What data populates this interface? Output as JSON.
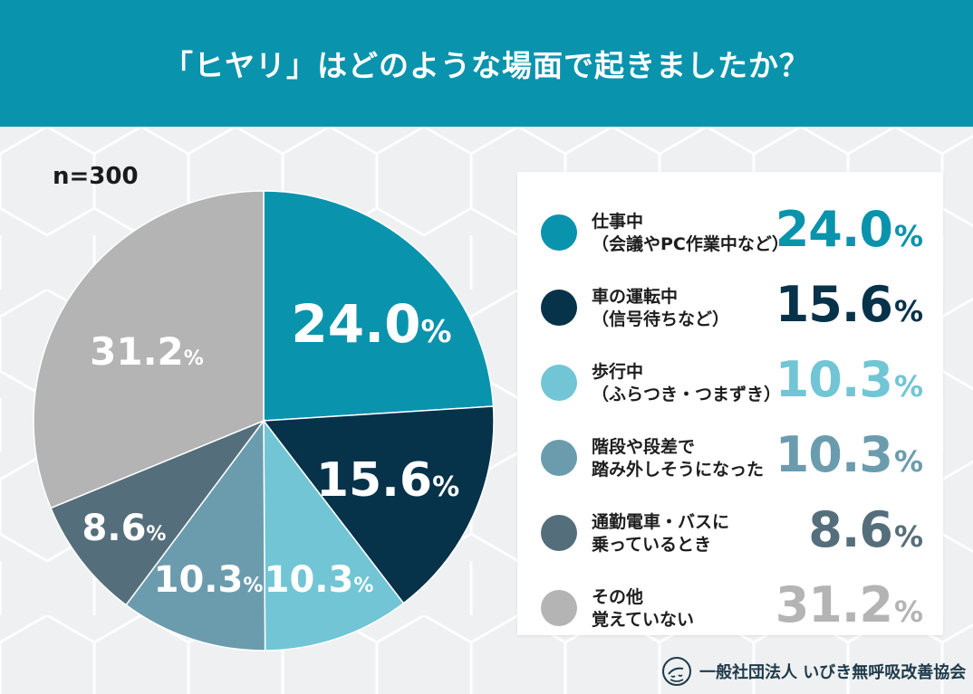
{
  "title": "「ヒヤリ」はどのような場面で起きましたか？",
  "n_label": "n=300",
  "pct_symbol": "%",
  "organization": "一般社団法人 いびき無呼吸改善協会",
  "logo_icon": "sleeping-face-logo-icon",
  "colors": {
    "header": "#0a93ad",
    "background": "#f1f2f3"
  },
  "chart_data": {
    "type": "pie",
    "title": "「ヒヤリ」はどのような場面で起きましたか？",
    "n": 300,
    "start": "12 o'clock, clockwise",
    "slices": [
      {
        "label_line1": "仕事中",
        "label_line2": "（会議やPC作業中など）",
        "value": 24.0,
        "display": "24.0",
        "color": "#0a93ad"
      },
      {
        "label_line1": "車の運転中",
        "label_line2": "（信号待ちなど）",
        "value": 15.6,
        "display": "15.6",
        "color": "#06324a"
      },
      {
        "label_line1": "歩行中",
        "label_line2": "（ふらつき・つまずき）",
        "value": 10.3,
        "display": "10.3",
        "color": "#72c5d4"
      },
      {
        "label_line1": "階段や段差で",
        "label_line2": "踏み外しそうになった",
        "value": 10.3,
        "display": "10.3",
        "color": "#6b9cae"
      },
      {
        "label_line1": "通勤電車・バスに",
        "label_line2": "乗っているとき",
        "value": 8.6,
        "display": "8.6",
        "color": "#556e7b"
      },
      {
        "label_line1": "その他",
        "label_line2": "覚えていない",
        "value": 31.2,
        "display": "31.2",
        "color": "#b4b4b4"
      }
    ]
  }
}
